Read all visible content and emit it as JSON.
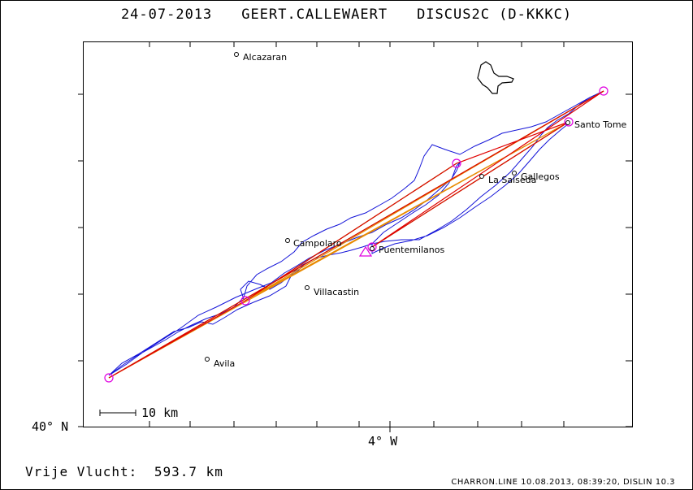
{
  "title": {
    "date": "24-07-2013",
    "pilot": "GEERT.CALLEWAERT",
    "glider": "DISCUS2C (D-KKKC)"
  },
  "axes": {
    "lat_label": "40° N",
    "lon_label": "4° W"
  },
  "scale_bar": {
    "label": "10 km"
  },
  "places": [
    {
      "name": "Alcazaran"
    },
    {
      "name": "Santo Tome"
    },
    {
      "name": "Gallegos"
    },
    {
      "name": "La Salseda"
    },
    {
      "name": "Campolaro"
    },
    {
      "name": "Puentemilanos"
    },
    {
      "name": "Villacastin"
    },
    {
      "name": "Avila"
    }
  ],
  "result": {
    "label": "Vrije Vlucht:",
    "distance": "593.7 km"
  },
  "footer": "CHARRON.LINE 10.08.2013, 08:39:20, DISLIN 10.3",
  "colors": {
    "track": "#1414d8",
    "turnpoint": "#e000e0",
    "route_red": "#e00000",
    "route_orange": "#e88a00",
    "route_green": "#7ad000",
    "frame": "#000000"
  }
}
